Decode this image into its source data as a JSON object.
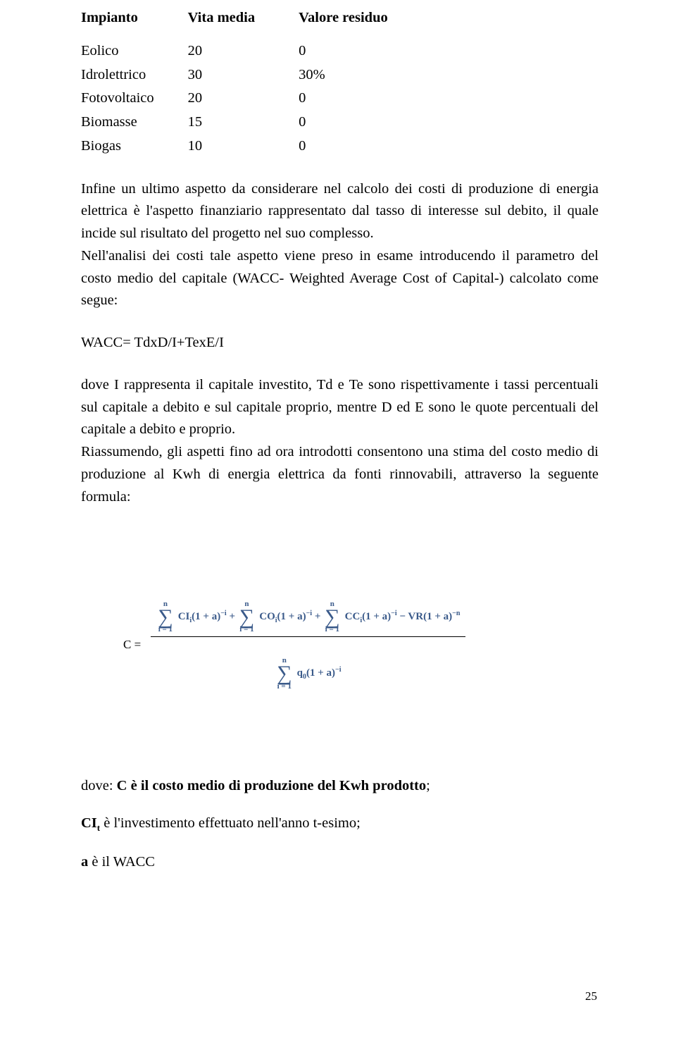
{
  "table": {
    "headers": {
      "c0": "Impianto",
      "c1": "Vita media",
      "c2": "Valore residuo"
    },
    "rows": [
      {
        "c0": "Eolico",
        "c1": "20",
        "c2": "0"
      },
      {
        "c0": "Idrolettrico",
        "c1": "30",
        "c2": "30%"
      },
      {
        "c0": "Fotovoltaico",
        "c1": "20",
        "c2": "0"
      },
      {
        "c0": "Biomasse",
        "c1": "15",
        "c2": "0"
      },
      {
        "c0": "Biogas",
        "c1": "10",
        "c2": "0"
      }
    ]
  },
  "para1": "Infine un ultimo aspetto da considerare nel calcolo dei costi di produzione di energia elettrica è l'aspetto finanziario rappresentato dal tasso di interesse sul debito, il quale incide sul risultato del progetto nel suo complesso.",
  "para2": "Nell'analisi dei costi tale aspetto viene preso in esame introducendo il parametro del costo medio del capitale (WACC- Weighted Average Cost of Capital-) calcolato come segue:",
  "wacc_formula": "WACC= TdxD/I+TexE/I",
  "para3": "dove I rappresenta il capitale investito, Td e Te sono rispettivamente i tassi percentuali sul capitale a debito e sul capitale proprio, mentre D ed E sono le quote percentuali del capitale a debito e proprio.",
  "para4": "Riassumendo, gli aspetti fino ad ora introdotti consentono una stima del costo medio di produzione al Kwh di energia elettrica da fonti rinnovabili, attraverso la seguente formula:",
  "cost_formula": {
    "label": "C =",
    "sum_top": "n",
    "sum_bot1": "i = 1",
    "term1": "CI",
    "term1_sub": "i",
    "common_mult": "(1 + a)",
    "exp_neg_i": "−i",
    "term2": "CO",
    "term2_sub": "i",
    "term3": "CC",
    "term3_sub": "i",
    "vr": "VR(1 + a)",
    "exp_neg_n": "−n",
    "den_sym": "q",
    "den_sub": "0",
    "den_mult": "(1 + a)",
    "den_exp": "−i",
    "sum_bot2": "i = 1"
  },
  "dove": {
    "line1_pre": "dove:  ",
    "line1_bold": "C  è il costo medio di produzione del Kwh prodotto",
    "line1_post": ";",
    "line2_sym": "CI",
    "line2_sub": "t",
    "line2_rest": "  è l'investimento effettuato nell'anno t-esimo;",
    "line3_sym": "a",
    "line3_rest": "   è il WACC"
  },
  "page_number": "25"
}
